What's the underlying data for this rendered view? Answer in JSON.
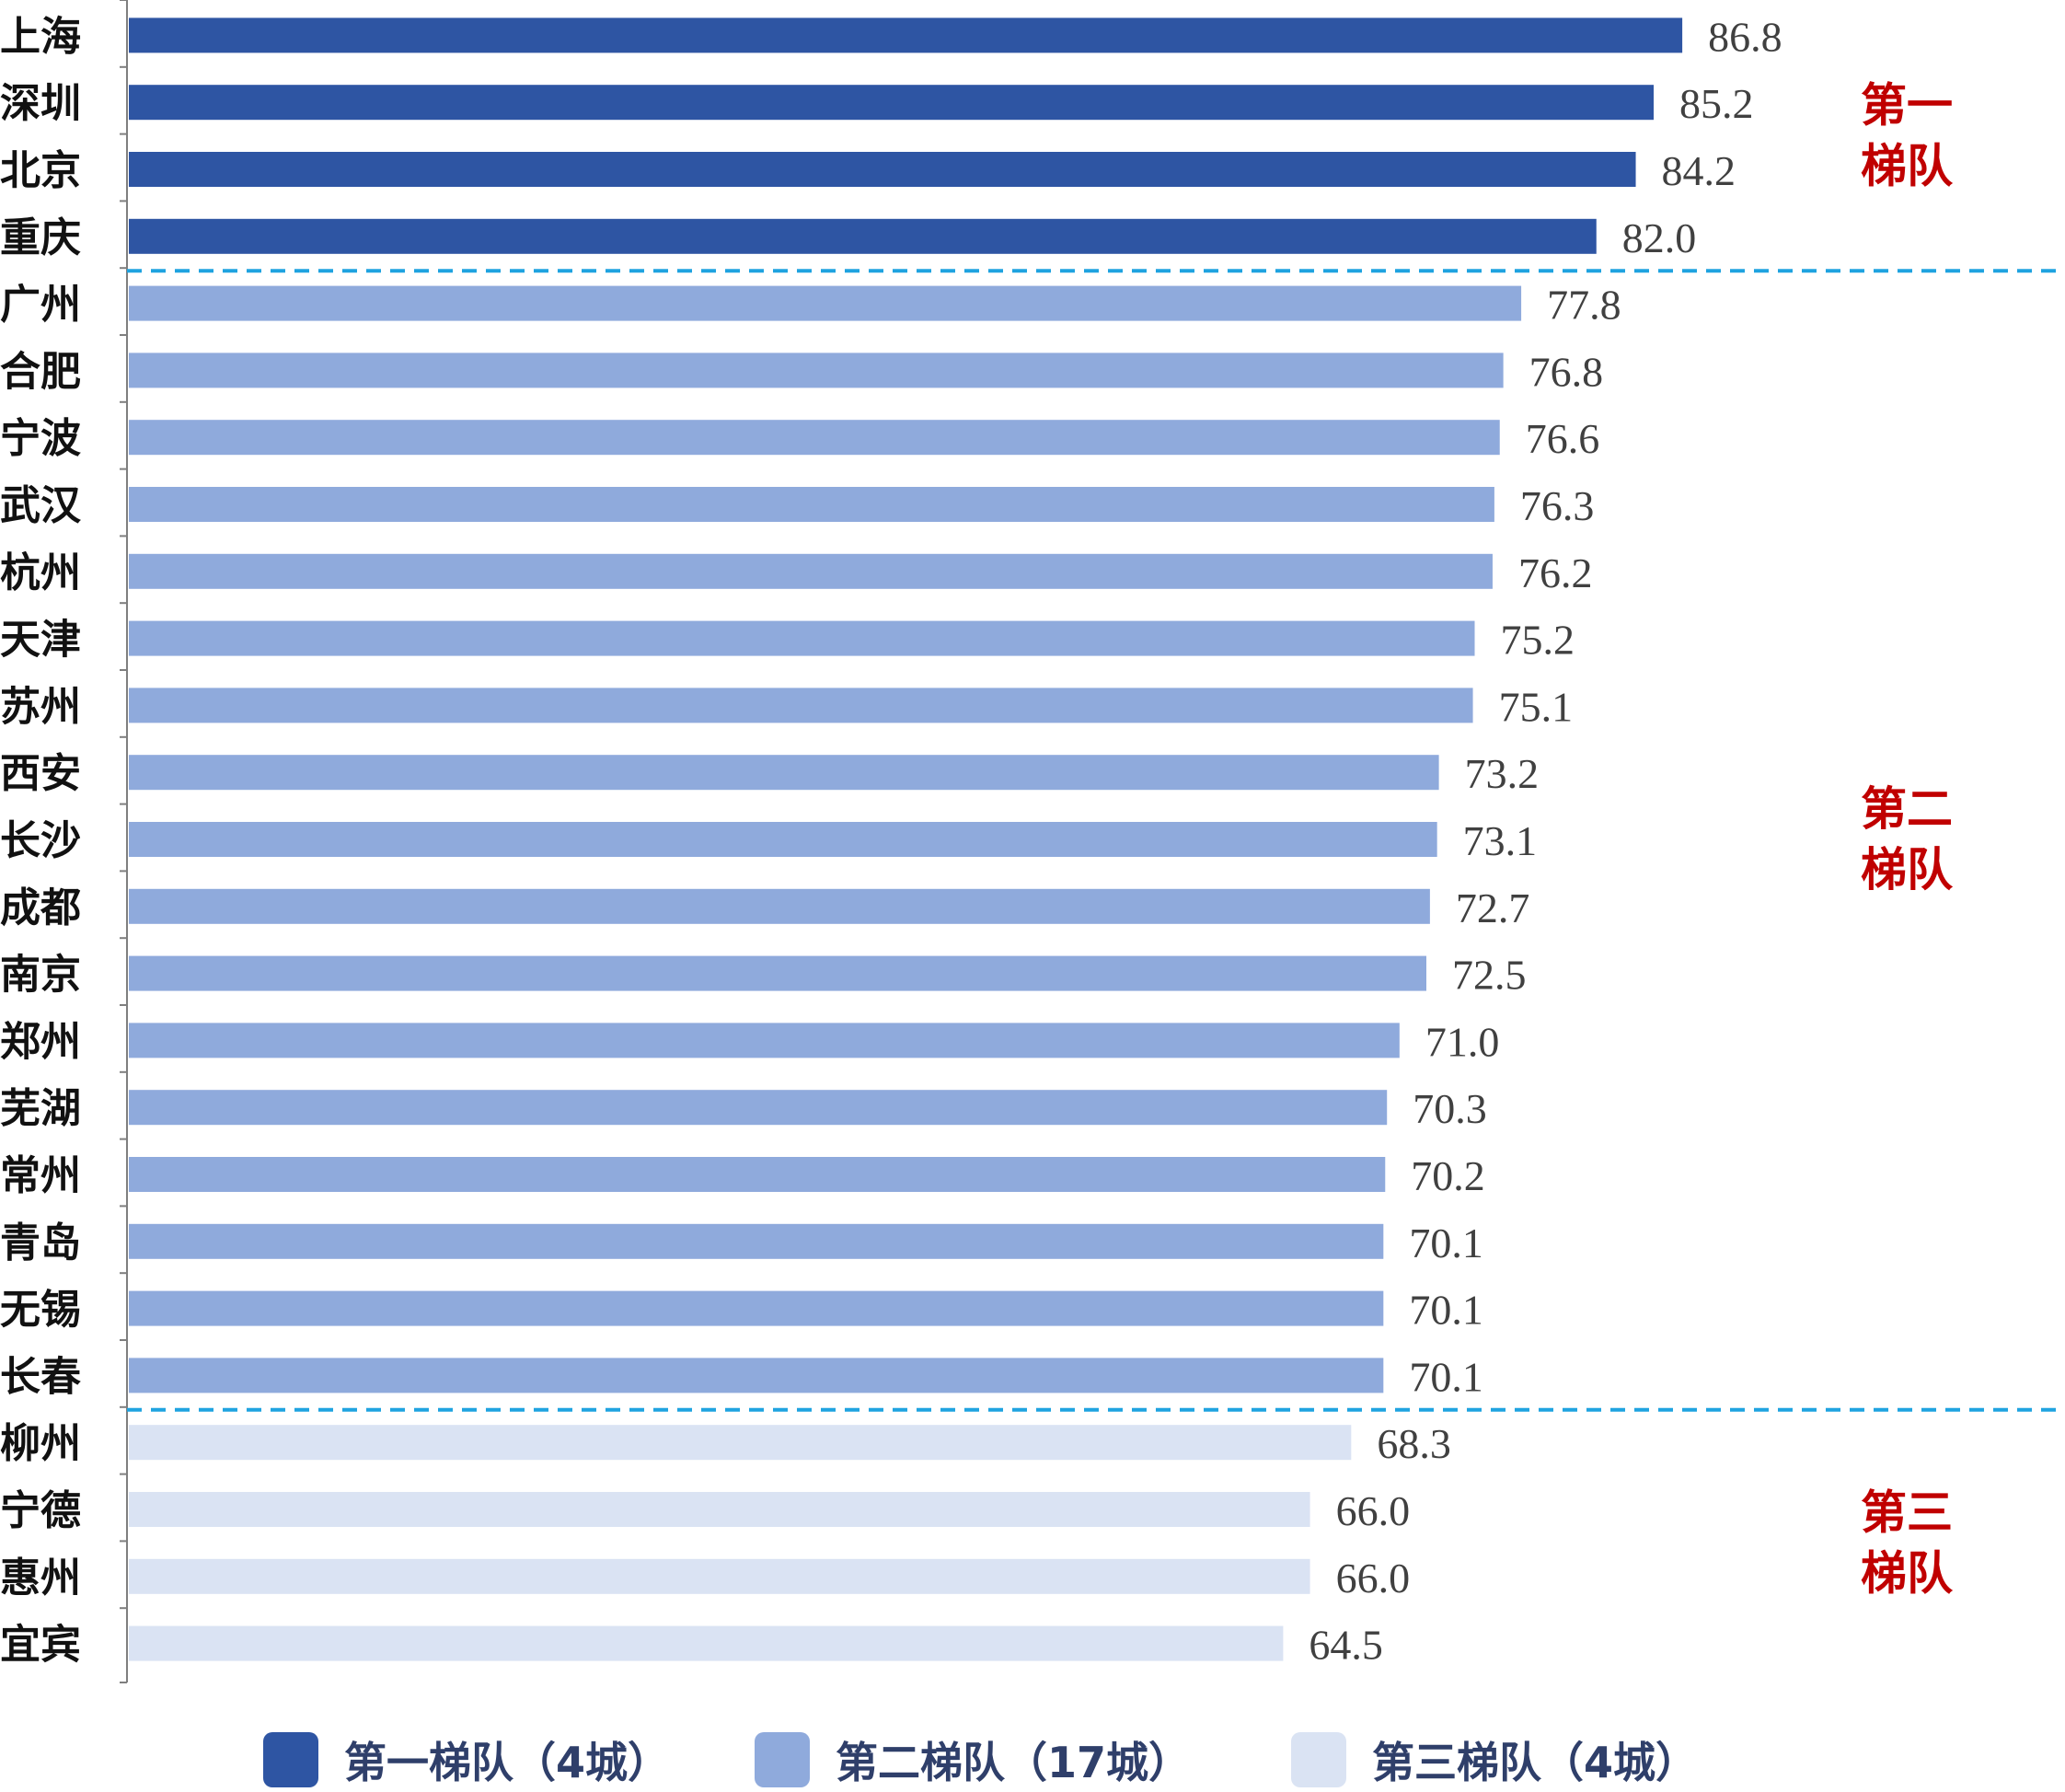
{
  "chart_data": {
    "type": "bar",
    "orientation": "horizontal",
    "categories": [
      "上海",
      "深圳",
      "北京",
      "重庆",
      "广州",
      "合肥",
      "宁波",
      "武汉",
      "杭州",
      "天津",
      "苏州",
      "西安",
      "长沙",
      "成都",
      "南京",
      "郑州",
      "芜湖",
      "常州",
      "青岛",
      "无锡",
      "长春",
      "柳州",
      "宁德",
      "惠州",
      "宜宾"
    ],
    "values": [
      86.8,
      85.2,
      84.2,
      82.0,
      77.8,
      76.8,
      76.6,
      76.3,
      76.2,
      75.2,
      75.1,
      73.2,
      73.1,
      72.7,
      72.5,
      71.0,
      70.3,
      70.2,
      70.1,
      70.1,
      70.1,
      68.3,
      66.0,
      66.0,
      64.5
    ],
    "value_labels": [
      "86.8",
      "85.2",
      "84.2",
      "82.0",
      "77.8",
      "76.8",
      "76.6",
      "76.3",
      "76.2",
      "75.2",
      "75.1",
      "73.2",
      "73.1",
      "72.7",
      "72.5",
      "71.0",
      "70.3",
      "70.2",
      "70.1",
      "70.1",
      "70.1",
      "68.3",
      "66.0",
      "66.0",
      "64.5"
    ],
    "tiers": [
      {
        "name": "第一梯队（4城）",
        "line1": "第一",
        "line2": "梯队",
        "count": 4,
        "color": "#2e55a3"
      },
      {
        "name": "第二梯队（17城）",
        "line1": "第二",
        "line2": "梯队",
        "count": 17,
        "color": "#8faadc"
      },
      {
        "name": "第三梯队（4城）",
        "line1": "第三",
        "line2": "梯队",
        "count": 4,
        "color": "#dae3f3"
      }
    ],
    "xlim": [
      0,
      87
    ],
    "divider_color": "#1fa3e0",
    "tier_label_color": "#c00000",
    "legend_position": "bottom-center",
    "grid": false
  },
  "legend": {
    "tier1": "第一梯队（4城）",
    "tier2": "第二梯队（17城）",
    "tier3": "第三梯队（4城）"
  }
}
